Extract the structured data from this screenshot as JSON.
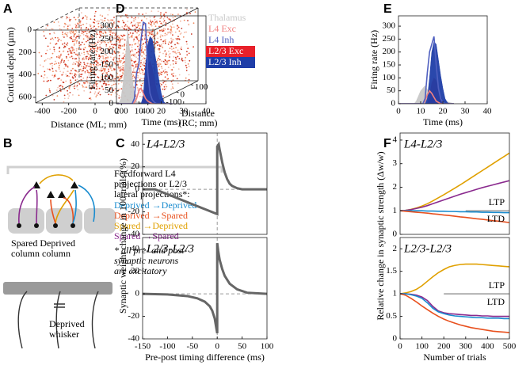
{
  "panels": {
    "a": "A",
    "b": "B",
    "c": "C",
    "d": "D",
    "e": "E",
    "f": "F"
  },
  "panel_a": {
    "y_label": "Cortical depth (µm)",
    "x_label": "Distance (ML; mm)",
    "z_label": [
      "Distance",
      "(RC; mm)"
    ],
    "xlim": [
      -450,
      450
    ],
    "zlim": [
      -150,
      150
    ],
    "depth_lim": [
      0,
      650
    ],
    "xticks": [
      -400,
      -200,
      0,
      200,
      400
    ],
    "zticks": [
      -100,
      0,
      100
    ],
    "depth_ticks": [
      0,
      200,
      400,
      600
    ]
  },
  "panel_b": {
    "columns": [
      "Spared Deprived",
      "column  column"
    ],
    "whisker": [
      "Deprived",
      "whisker"
    ],
    "description": [
      "Feedforward L4",
      "projections or L2/3",
      "lateral projections*:"
    ],
    "pathways": [
      {
        "label": "Deprived →Deprived",
        "color": "#1a8ccf"
      },
      {
        "label": "Deprived →Spared",
        "color": "#e8501e"
      },
      {
        "label": "Spared   →Deprived",
        "color": "#e0a000"
      },
      {
        "label": "Spared   →Spared",
        "color": "#8a2a8e"
      }
    ],
    "note": [
      "* all pre- and post-",
      "synaptic neurons",
      "are excitatory"
    ]
  },
  "chart_data": [
    {
      "type": "line",
      "x_label": "Time (ms)",
      "y_label": "Firing rate (Hz)",
      "xlim": [
        0,
        40
      ],
      "ylim": [
        0,
        340
      ],
      "xticks": [
        0,
        10,
        20,
        30,
        40
      ],
      "yticks": [
        0,
        50,
        100,
        150,
        200,
        250,
        300
      ],
      "legend": true,
      "x": [
        0,
        1,
        2,
        3,
        4,
        5,
        6,
        7,
        8,
        9,
        10,
        11,
        12,
        13,
        14,
        15,
        16,
        17,
        18,
        19,
        20,
        21,
        22,
        23,
        24,
        25
      ],
      "series": [
        {
          "name": "Thalamus",
          "color": "#c8c8c8",
          "fill": true,
          "values": [
            0,
            0,
            20,
            80,
            180,
            285,
            200,
            100,
            40,
            10,
            0,
            0,
            0,
            0,
            0,
            0,
            0,
            0,
            0,
            0,
            0,
            0,
            0,
            0,
            0,
            0
          ]
        },
        {
          "name": "L4 Exc",
          "color": "#f08080",
          "fill": false,
          "values": [
            0,
            0,
            0,
            0,
            0,
            0,
            0,
            0,
            5,
            20,
            50,
            60,
            40,
            20,
            10,
            5,
            0,
            0,
            0,
            0,
            0,
            0,
            0,
            0,
            0,
            0
          ]
        },
        {
          "name": "L4 Inh",
          "color": "#5060c0",
          "fill": false,
          "values": [
            0,
            0,
            0,
            0,
            0,
            0,
            0,
            0,
            20,
            120,
            150,
            250,
            315,
            310,
            120,
            40,
            15,
            5,
            0,
            0,
            0,
            0,
            0,
            0,
            0,
            0
          ]
        },
        {
          "name": "L2/3 Exc",
          "color": "#e8202a",
          "fill": true,
          "legend_box": true,
          "values": [
            0,
            0,
            0,
            0,
            0,
            0,
            0,
            0,
            0,
            0,
            0,
            0,
            10,
            80,
            150,
            165,
            140,
            90,
            50,
            20,
            5,
            0,
            0,
            0,
            0,
            0
          ]
        },
        {
          "name": "L2/3 Inh",
          "color": "#1f3ea8",
          "fill": true,
          "legend_box": true,
          "values": [
            0,
            0,
            0,
            0,
            0,
            0,
            0,
            0,
            0,
            0,
            0,
            0,
            30,
            150,
            230,
            260,
            250,
            200,
            150,
            90,
            40,
            10,
            0,
            0,
            0,
            0
          ]
        }
      ]
    },
    {
      "type": "line",
      "x_label": "Time (ms)",
      "y_label": "Firing rate (Hz)",
      "xlim": [
        0,
        40
      ],
      "ylim": [
        0,
        340
      ],
      "xticks": [
        0,
        10,
        20,
        30,
        40
      ],
      "yticks": [
        0,
        50,
        100,
        150,
        200,
        250,
        300
      ],
      "legend": false,
      "x": [
        0,
        1,
        2,
        3,
        4,
        5,
        6,
        7,
        8,
        9,
        10,
        11,
        12,
        13,
        14,
        15,
        16,
        17,
        18,
        19,
        20,
        21,
        22,
        23,
        24,
        25
      ],
      "series": [
        {
          "color": "#c8c8c8",
          "fill": true,
          "values": [
            0,
            0,
            0,
            0,
            0,
            0,
            0,
            0,
            10,
            30,
            50,
            60,
            70,
            55,
            40,
            50,
            45,
            35,
            25,
            20,
            15,
            10,
            8,
            5,
            3,
            0
          ]
        },
        {
          "color": "#f08080",
          "fill": false,
          "values": [
            0,
            0,
            0,
            0,
            0,
            0,
            0,
            0,
            0,
            0,
            0,
            0,
            10,
            35,
            50,
            40,
            25,
            10,
            5,
            0,
            0,
            0,
            0,
            0,
            0,
            0
          ]
        },
        {
          "color": "#5060c0",
          "fill": false,
          "values": [
            0,
            0,
            0,
            0,
            0,
            0,
            0,
            0,
            0,
            0,
            0,
            0,
            20,
            120,
            200,
            230,
            260,
            150,
            60,
            20,
            5,
            0,
            0,
            0,
            0,
            0
          ]
        },
        {
          "color": "#e8202a",
          "fill": true,
          "values": [
            0,
            0,
            0,
            0,
            0,
            0,
            0,
            0,
            0,
            0,
            0,
            0,
            0,
            0,
            30,
            80,
            100,
            90,
            60,
            30,
            10,
            0,
            0,
            0,
            0,
            0
          ]
        },
        {
          "color": "#1f3ea8",
          "fill": true,
          "values": [
            0,
            0,
            0,
            0,
            0,
            0,
            0,
            0,
            0,
            0,
            0,
            0,
            0,
            20,
            100,
            200,
            240,
            230,
            170,
            110,
            60,
            20,
            5,
            0,
            0,
            0
          ]
        }
      ]
    },
    {
      "type": "line",
      "title": "L4-L2/3",
      "y_label": "Synaptic weight change in 100 trials (%)",
      "xlim": [
        -150,
        100
      ],
      "ylim": [
        -40,
        50
      ],
      "yticks": [
        -40,
        -20,
        0,
        20,
        40
      ],
      "ref_lines": {
        "x": 0,
        "y": 0
      },
      "x": [
        -150,
        -125,
        -100,
        -75,
        -50,
        -25,
        0,
        0,
        3,
        5,
        10,
        15,
        20,
        25,
        30,
        40,
        50,
        75,
        100
      ],
      "series": [
        {
          "color": "#666666",
          "values": [
            0,
            0,
            -4.4,
            -8.8,
            -13.2,
            -17.6,
            -22,
            38,
            40,
            35,
            24,
            15,
            9,
            5,
            3,
            1,
            0,
            0,
            0
          ]
        }
      ]
    },
    {
      "type": "line",
      "title": "L2/3-L2/3",
      "x_label": "Pre-post timing difference (ms)",
      "xlim": [
        -150,
        100
      ],
      "ylim": [
        -40,
        50
      ],
      "xticks": [
        -150,
        -100,
        -50,
        0,
        50,
        100
      ],
      "yticks": [
        -40,
        -20,
        0,
        20,
        40
      ],
      "ref_lines": {
        "x": 0,
        "y": 0
      },
      "x": [
        -150,
        -100,
        -60,
        -40,
        -25,
        -15,
        -10,
        -5,
        -2,
        0,
        0,
        2,
        5,
        10,
        15,
        25,
        40,
        60,
        100
      ],
      "series": [
        {
          "color": "#666666",
          "values": [
            0,
            -0.5,
            -2,
            -4,
            -7,
            -11,
            -15,
            -22,
            -30,
            -35,
            45,
            38,
            30,
            22,
            16,
            9,
            4,
            1,
            0
          ]
        }
      ]
    },
    {
      "type": "line",
      "title": "L4-L2/3",
      "y_label": "Relative change in synaptic strength (Δw/w)",
      "xlim": [
        0,
        500
      ],
      "ylim": [
        0,
        4.3
      ],
      "yticks": [
        0,
        1,
        2,
        3,
        4
      ],
      "ref_line": {
        "y": 1,
        "x_start": 300
      },
      "annotations": [
        "LTP",
        "LTD"
      ],
      "x": [
        0,
        25,
        50,
        75,
        100,
        125,
        150,
        175,
        200,
        225,
        250,
        275,
        300,
        325,
        350,
        375,
        400,
        425,
        450,
        475,
        500
      ],
      "series": [
        {
          "color": "#e0a000",
          "values": [
            1,
            1.02,
            1.06,
            1.12,
            1.2,
            1.3,
            1.42,
            1.55,
            1.68,
            1.82,
            1.96,
            2.1,
            2.25,
            2.4,
            2.55,
            2.7,
            2.85,
            3.0,
            3.15,
            3.3,
            3.45
          ]
        },
        {
          "color": "#8a2a8e",
          "values": [
            1,
            1.02,
            1.05,
            1.1,
            1.15,
            1.22,
            1.3,
            1.38,
            1.46,
            1.54,
            1.62,
            1.7,
            1.77,
            1.84,
            1.91,
            1.98,
            2.04,
            2.1,
            2.16,
            2.22,
            2.28
          ]
        },
        {
          "color": "#1a8ccf",
          "values": [
            1,
            1,
            1,
            1,
            1,
            0.99,
            0.99,
            0.98,
            0.98,
            0.97,
            0.97,
            0.96,
            0.96,
            0.95,
            0.95,
            0.94,
            0.94,
            0.93,
            0.93,
            0.92,
            0.92
          ]
        },
        {
          "color": "#e8501e",
          "values": [
            1,
            0.98,
            0.96,
            0.94,
            0.92,
            0.9,
            0.87,
            0.85,
            0.82,
            0.8,
            0.77,
            0.74,
            0.72,
            0.69,
            0.66,
            0.64,
            0.61,
            0.58,
            0.56,
            0.53,
            0.5
          ]
        }
      ]
    },
    {
      "type": "line",
      "title": "L2/3-L2/3",
      "x_label": "Number of trials",
      "xlim": [
        0,
        500
      ],
      "ylim": [
        0,
        2.25
      ],
      "xticks": [
        0,
        100,
        200,
        300,
        400,
        500
      ],
      "yticks": [
        0,
        0.5,
        1,
        1.5,
        2
      ],
      "ref_line": {
        "y": 1,
        "x_start": 200
      },
      "annotations": [
        "LTP",
        "LTD"
      ],
      "x": [
        0,
        25,
        50,
        75,
        100,
        125,
        150,
        175,
        200,
        225,
        250,
        275,
        300,
        325,
        350,
        375,
        400,
        425,
        450,
        475,
        500
      ],
      "series": [
        {
          "color": "#e0a000",
          "values": [
            1,
            1.02,
            1.05,
            1.1,
            1.18,
            1.28,
            1.38,
            1.47,
            1.54,
            1.6,
            1.63,
            1.65,
            1.66,
            1.66,
            1.66,
            1.65,
            1.64,
            1.63,
            1.62,
            1.61,
            1.6
          ]
        },
        {
          "color": "#8a2a8e",
          "values": [
            1,
            1,
            0.99,
            0.97,
            0.93,
            0.85,
            0.72,
            0.62,
            0.58,
            0.56,
            0.55,
            0.54,
            0.53,
            0.52,
            0.52,
            0.51,
            0.51,
            0.5,
            0.5,
            0.5,
            0.5
          ]
        },
        {
          "color": "#1a8ccf",
          "values": [
            1,
            1,
            0.98,
            0.95,
            0.9,
            0.8,
            0.68,
            0.6,
            0.56,
            0.53,
            0.51,
            0.5,
            0.49,
            0.48,
            0.47,
            0.47,
            0.46,
            0.46,
            0.46,
            0.45,
            0.45
          ]
        },
        {
          "color": "#e8501e",
          "values": [
            1,
            0.97,
            0.9,
            0.82,
            0.73,
            0.65,
            0.57,
            0.5,
            0.44,
            0.39,
            0.35,
            0.31,
            0.28,
            0.25,
            0.23,
            0.21,
            0.19,
            0.17,
            0.16,
            0.15,
            0.14
          ]
        }
      ]
    }
  ]
}
